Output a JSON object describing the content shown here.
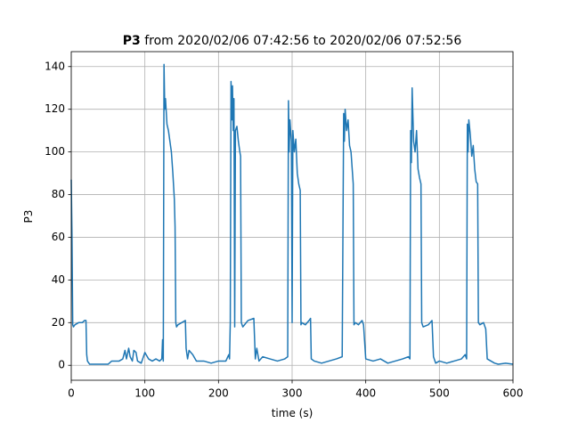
{
  "chart_data": {
    "type": "line",
    "title_name": "P3",
    "title": "from 2020/02/06 07:42:56 to 2020/02/06 07:52:56",
    "xlabel": "time (s)",
    "ylabel": "P3",
    "xlim": [
      0,
      600
    ],
    "ylim": [
      -7,
      147
    ],
    "xticks": [
      0,
      100,
      200,
      300,
      400,
      500,
      600
    ],
    "yticks": [
      0,
      20,
      40,
      60,
      80,
      100,
      120,
      140
    ],
    "grid": true,
    "series": [
      {
        "color": "#1f77b4",
        "x": [
          0,
          1,
          2,
          3,
          5,
          10,
          15,
          18,
          20,
          21,
          22,
          25,
          30,
          40,
          50,
          55,
          60,
          65,
          70,
          73,
          75,
          78,
          80,
          83,
          85,
          88,
          90,
          95,
          100,
          105,
          110,
          115,
          120,
          123,
          124,
          125,
          126,
          127,
          128,
          130,
          132,
          134,
          136,
          138,
          140,
          141,
          142,
          143,
          145,
          150,
          155,
          156,
          158,
          160,
          165,
          170,
          180,
          190,
          200,
          210,
          214,
          215,
          216,
          217,
          218,
          219,
          220,
          221,
          222,
          223,
          225,
          227,
          229,
          230,
          231,
          233,
          240,
          248,
          250,
          252,
          255,
          260,
          270,
          280,
          290,
          294,
          295,
          296,
          297,
          299,
          300,
          301,
          303,
          305,
          307,
          309,
          311,
          312,
          313,
          318,
          323,
          325,
          326,
          330,
          340,
          350,
          360,
          368,
          370,
          371,
          372,
          374,
          376,
          378,
          380,
          382,
          383,
          384,
          386,
          390,
          395,
          397,
          400,
          410,
          420,
          430,
          440,
          450,
          458,
          460,
          461,
          462,
          463,
          465,
          467,
          469,
          471,
          473,
          475,
          476,
          478,
          485,
          490,
          492,
          495,
          500,
          510,
          520,
          530,
          535,
          537,
          538,
          539,
          540,
          542,
          544,
          546,
          548,
          550,
          552,
          553,
          555,
          560,
          563,
          565,
          570,
          575,
          580,
          590,
          600
        ],
        "values": [
          87,
          60,
          19,
          18,
          19,
          20,
          20,
          21,
          21,
          5,
          2,
          0.5,
          0.5,
          0.5,
          0.5,
          2,
          2,
          2,
          3,
          7,
          3,
          8,
          4,
          2,
          7,
          6,
          2,
          1,
          6,
          3,
          2,
          3,
          2,
          3,
          12,
          2,
          141,
          120,
          125,
          113,
          110,
          105,
          100,
          90,
          78,
          65,
          20,
          18,
          19,
          20,
          21,
          8,
          3,
          7,
          5,
          2,
          2,
          1,
          2,
          2,
          5,
          3,
          20,
          133,
          115,
          131,
          110,
          125,
          18,
          110,
          112,
          105,
          100,
          98,
          20,
          18,
          21,
          22,
          3,
          8,
          2,
          4,
          3,
          2,
          3,
          4,
          124,
          100,
          115,
          105,
          20,
          110,
          100,
          106,
          90,
          85,
          82,
          19,
          20,
          19,
          21,
          22,
          3,
          2,
          1,
          2,
          3,
          4,
          118,
          105,
          120,
          110,
          115,
          103,
          100,
          90,
          85,
          19,
          20,
          19,
          21,
          19,
          3,
          2,
          3,
          1,
          2,
          3,
          4,
          3,
          110,
          95,
          130,
          105,
          100,
          110,
          92,
          88,
          85,
          20,
          18,
          19,
          21,
          4,
          1,
          2,
          1,
          2,
          3,
          5,
          3,
          113,
          100,
          115,
          108,
          98,
          103,
          92,
          86,
          85,
          20,
          19,
          20,
          17,
          3,
          2,
          1,
          0.5,
          1,
          0.5
        ]
      }
    ]
  }
}
